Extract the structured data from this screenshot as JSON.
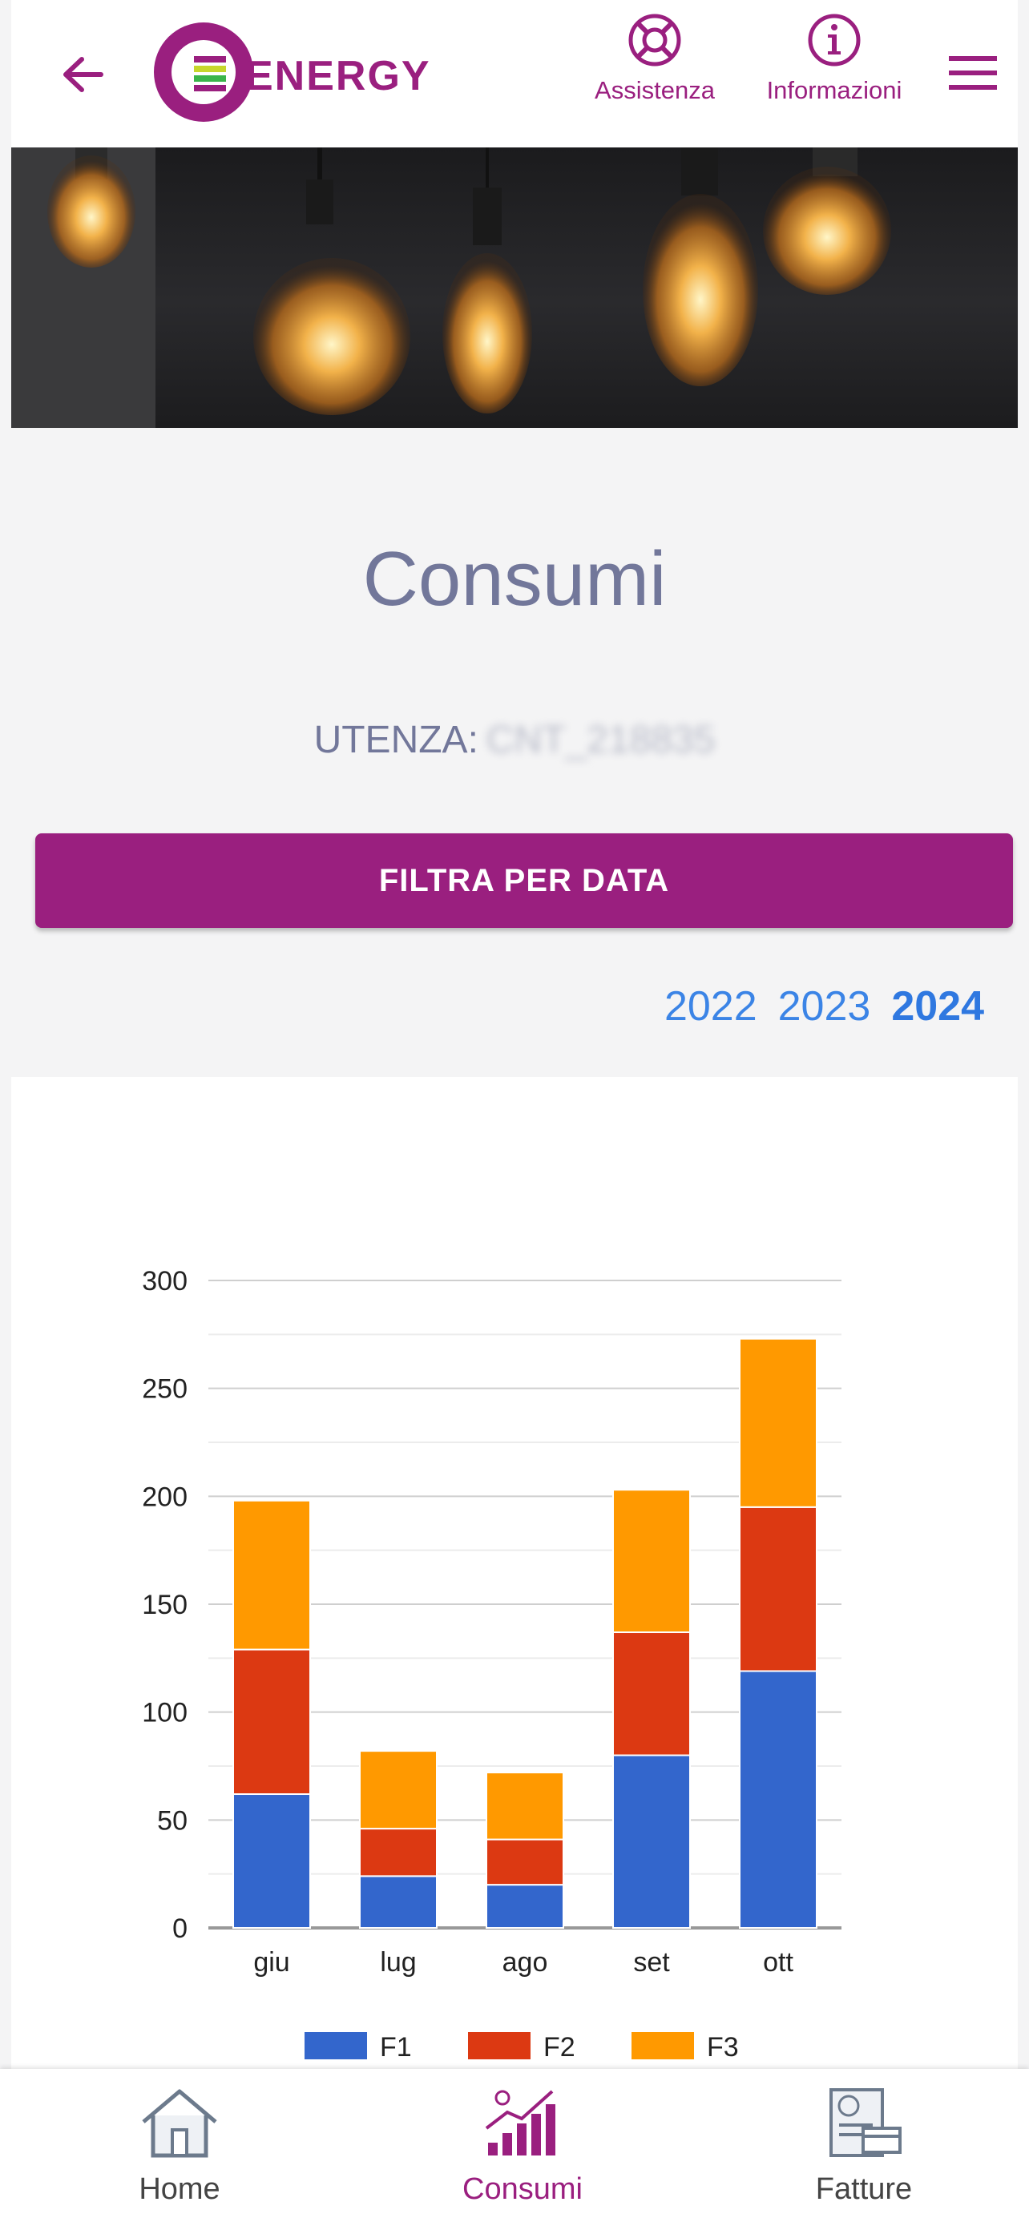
{
  "header": {
    "brand": "ENERGY",
    "assistance_label": "Assistenza",
    "info_label": "Informazioni"
  },
  "page": {
    "title": "Consumi",
    "utenza_label": "UTENZA:",
    "utenza_value": "CNT_218835",
    "filter_button_label": "FILTRA PER DATA",
    "years": [
      "2022",
      "2023",
      "2024"
    ],
    "selected_year": "2024"
  },
  "chart_data": {
    "type": "bar",
    "stacked": true,
    "categories": [
      "giu",
      "lug",
      "ago",
      "set",
      "ott"
    ],
    "series": [
      {
        "name": "F1",
        "color": "#3366cc",
        "values": [
          62,
          24,
          20,
          80,
          119
        ]
      },
      {
        "name": "F2",
        "color": "#dc3912",
        "values": [
          67,
          22,
          21,
          57,
          76
        ]
      },
      {
        "name": "F3",
        "color": "#ff9900",
        "values": [
          69,
          36,
          31,
          66,
          78
        ]
      }
    ],
    "yticks": [
      0,
      50,
      100,
      150,
      200,
      250,
      300
    ],
    "ylim": [
      0,
      300
    ],
    "grid": true,
    "legend": "bottom"
  },
  "bottom_nav": {
    "items": [
      {
        "label": "Home",
        "icon": "home-icon"
      },
      {
        "label": "Consumi",
        "icon": "consumption-chart-icon"
      },
      {
        "label": "Fatture",
        "icon": "invoice-icon"
      }
    ],
    "active": "Consumi"
  },
  "colors": {
    "brand": "#9a1f7f",
    "year_link": "#3b84e6",
    "title": "#72779a"
  }
}
